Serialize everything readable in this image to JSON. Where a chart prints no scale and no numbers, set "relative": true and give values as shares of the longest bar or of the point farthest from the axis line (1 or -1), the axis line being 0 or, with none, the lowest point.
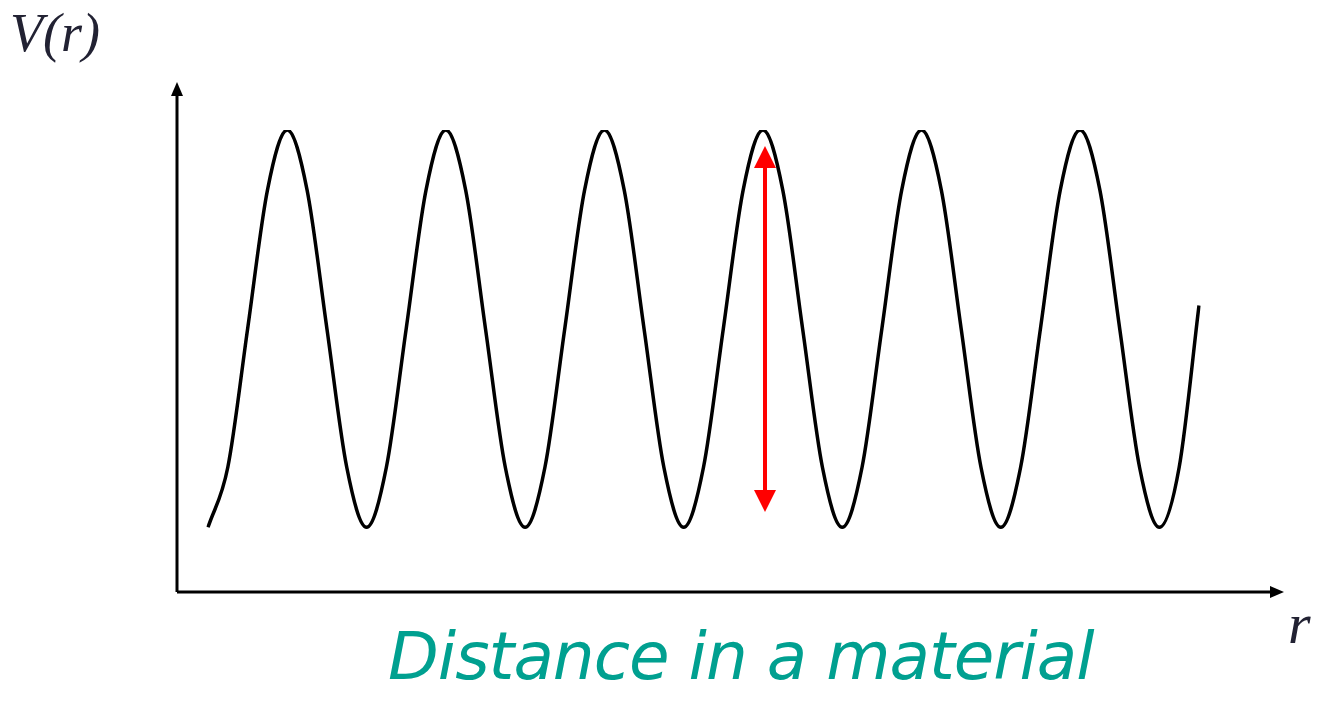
{
  "chart_data": {
    "type": "line",
    "relative": true,
    "ylabel": "V(r)",
    "xlabel": "r",
    "annotations": [
      "Distance in a material"
    ],
    "legend": false,
    "categories": [
      null,
      null,
      null,
      null,
      null,
      null,
      null,
      null,
      null,
      null,
      null,
      null,
      null,
      null,
      null,
      null,
      null,
      null,
      null,
      null,
      null,
      null,
      null,
      null,
      null,
      null,
      null,
      null,
      null,
      null,
      null,
      null,
      null,
      null,
      null,
      null,
      null,
      null,
      null,
      null,
      null,
      null,
      null,
      null,
      null,
      null,
      null,
      null,
      null,
      null,
      null
    ],
    "series": [
      {
        "color": "#000000",
        "values": [
          0.14,
          0.27,
          0.57,
          0.87,
          1,
          0.87,
          0.57,
          0.27,
          0.14,
          0.27,
          0.57,
          0.87,
          1,
          0.87,
          0.57,
          0.27,
          0.14,
          0.27,
          0.57,
          0.87,
          1,
          0.87,
          0.57,
          0.27,
          0.14,
          0.27,
          0.57,
          0.87,
          1,
          0.87,
          0.57,
          0.27,
          0.14,
          0.27,
          0.57,
          0.87,
          1,
          0.87,
          0.57,
          0.27,
          0.14,
          0.27,
          0.57,
          0.87,
          1,
          0.87,
          0.57,
          0.27,
          0.14,
          0.27,
          0.62
        ]
      }
    ]
  }
}
